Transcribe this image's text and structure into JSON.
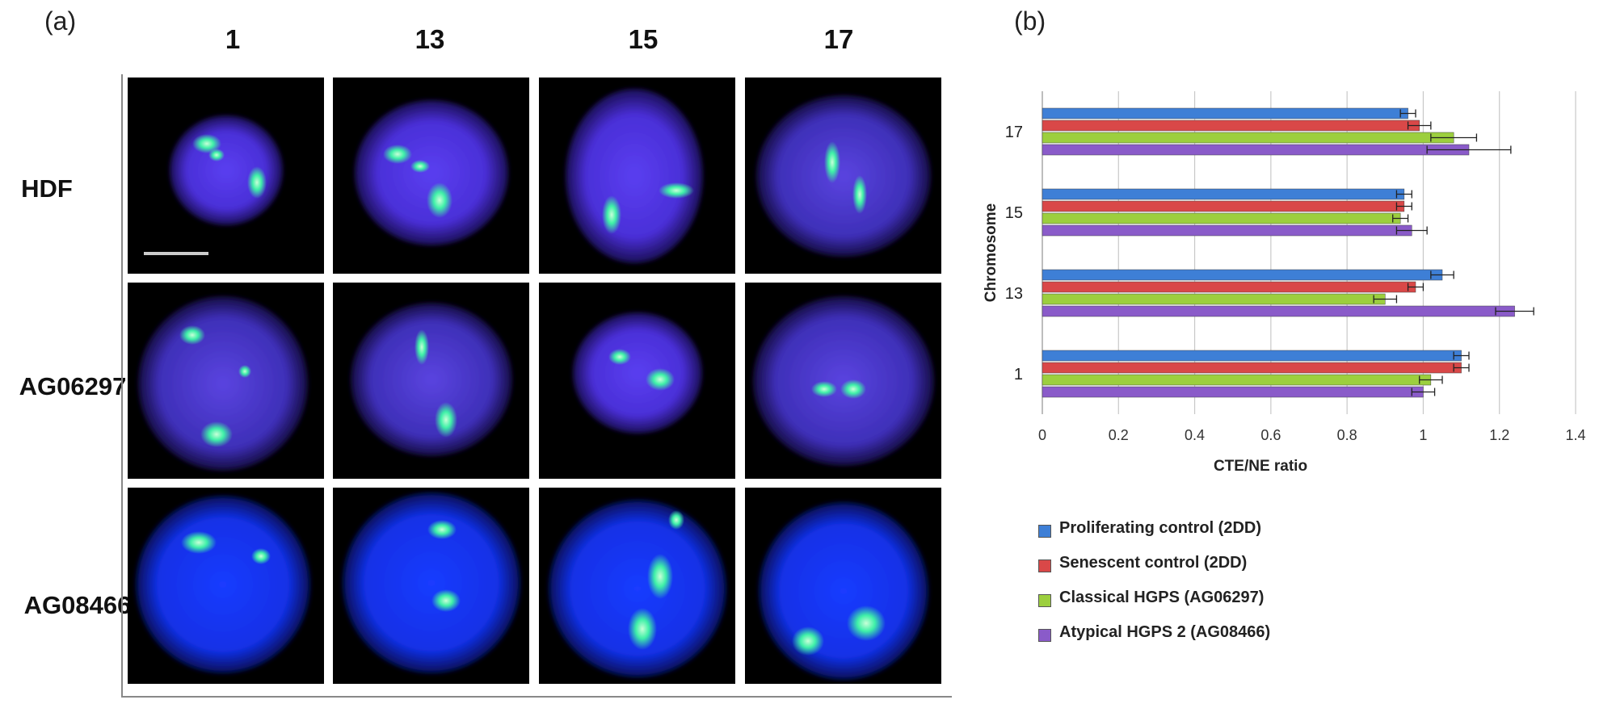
{
  "figure": {
    "panel_a_label": "(a)",
    "panel_b_label": "(b)",
    "columns": [
      "1",
      "13",
      "15",
      "17"
    ],
    "rows": [
      "HDF",
      "AG06297",
      "AG08466"
    ]
  },
  "chart_data": {
    "type": "bar",
    "orientation": "horizontal",
    "ylabel": "Chromosome",
    "xlabel": "CTE/NE ratio",
    "categories": [
      "17",
      "15",
      "13",
      "1"
    ],
    "xlim": [
      0,
      1.4
    ],
    "xticks": [
      "0",
      "0.2",
      "0.4",
      "0.6",
      "0.8",
      "1",
      "1.2",
      "1.4"
    ],
    "grid": "vertical",
    "legend_position": "bottom",
    "series": [
      {
        "name": "Proliferating control (2DD)",
        "color": "#3e7fd6",
        "values": [
          0.96,
          0.95,
          1.05,
          1.1
        ],
        "errors": [
          0.02,
          0.02,
          0.03,
          0.02
        ]
      },
      {
        "name": "Senescent control (2DD)",
        "color": "#d94848",
        "values": [
          0.99,
          0.95,
          0.98,
          1.1
        ],
        "errors": [
          0.03,
          0.02,
          0.02,
          0.02
        ]
      },
      {
        "name": "Classical HGPS (AG06297)",
        "color": "#9ccf3e",
        "values": [
          1.08,
          0.94,
          0.9,
          1.02
        ],
        "errors": [
          0.06,
          0.02,
          0.03,
          0.03
        ]
      },
      {
        "name": "Atypical HGPS 2 (AG08466)",
        "color": "#8a5bc9",
        "values": [
          1.12,
          0.97,
          1.24,
          1.0
        ],
        "errors": [
          0.11,
          0.04,
          0.05,
          0.03
        ]
      }
    ]
  }
}
